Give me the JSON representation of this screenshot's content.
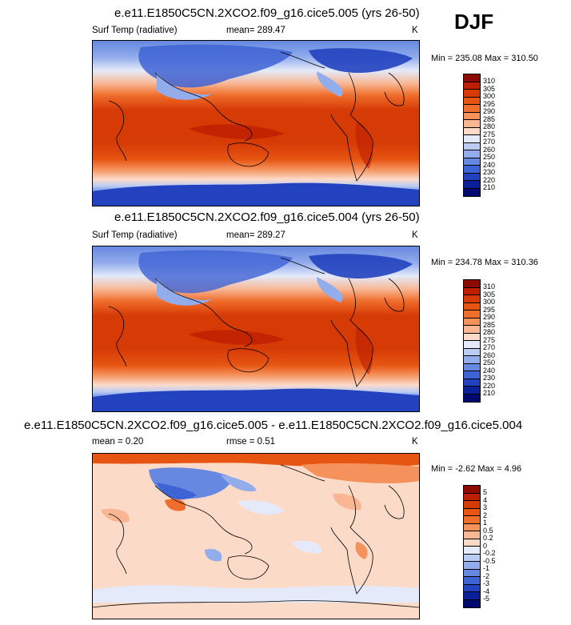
{
  "season": "DJF",
  "panels": [
    {
      "title": "e.e11.E1850C5CN.2XCO2.f09_g16.cice5.005 (yrs 26-50)",
      "variable": "Surf Temp (radiative)",
      "stat": "mean= 289.47",
      "unit": "K",
      "minmax": "Min = 235.08 Max = 310.50",
      "levels": [
        "310",
        "305",
        "300",
        "295",
        "290",
        "285",
        "280",
        "275",
        "270",
        "260",
        "250",
        "240",
        "230",
        "220",
        "210"
      ],
      "colors": [
        "#8c0a00",
        "#bd1f00",
        "#d63a05",
        "#e65512",
        "#f06e2c",
        "#f5925c",
        "#f9b693",
        "#fcdac8",
        "#e4eaf9",
        "#bccdf4",
        "#92acec",
        "#6688e0",
        "#3e63d4",
        "#2242bf",
        "#0a1f99",
        "#02096e"
      ]
    },
    {
      "title": "e.e11.E1850C5CN.2XCO2.f09_g16.cice5.004 (yrs 26-50)",
      "variable": "Surf Temp (radiative)",
      "stat": "mean= 289.27",
      "unit": "K",
      "minmax": "Min = 234.78 Max = 310.36",
      "levels": [
        "310",
        "305",
        "300",
        "295",
        "290",
        "285",
        "280",
        "275",
        "270",
        "260",
        "250",
        "240",
        "230",
        "220",
        "210"
      ],
      "colors": [
        "#8c0a00",
        "#bd1f00",
        "#d63a05",
        "#e65512",
        "#f06e2c",
        "#f5925c",
        "#f9b693",
        "#fcdac8",
        "#e4eaf9",
        "#bccdf4",
        "#92acec",
        "#6688e0",
        "#3e63d4",
        "#2242bf",
        "#0a1f99",
        "#02096e"
      ]
    },
    {
      "title": "e.e11.E1850C5CN.2XCO2.f09_g16.cice5.005 - e.e11.E1850C5CN.2XCO2.f09_g16.cice5.004",
      "variable": "mean =   0.20",
      "stat": "rmse =   0.51",
      "unit": "K",
      "minmax": "Min = -2.62 Max =   4.96",
      "levels": [
        "5",
        "4",
        "3",
        "2",
        "1",
        "0.5",
        "0.2",
        "0",
        "-0.2",
        "-0.5",
        "-1",
        "-2",
        "-3",
        "-4",
        "-5"
      ],
      "colors": [
        "#8c0a00",
        "#bd1f00",
        "#d63a05",
        "#e65512",
        "#f06e2c",
        "#f5925c",
        "#f9b693",
        "#fcdac8",
        "#e4eaf9",
        "#bccdf4",
        "#92acec",
        "#6688e0",
        "#3e63d4",
        "#2242bf",
        "#0a1f99",
        "#02096e"
      ]
    }
  ],
  "chart_data": [
    {
      "type": "heatmap",
      "title": "e.e11.E1850C5CN.2XCO2.f09_g16.cice5.005 (yrs 26-50)",
      "variable": "Surf Temp (radiative)",
      "unit": "K",
      "mean": 289.47,
      "min": 235.08,
      "max": 310.5,
      "contour_levels": [
        210,
        220,
        230,
        240,
        250,
        260,
        270,
        275,
        280,
        285,
        290,
        295,
        300,
        305,
        310
      ]
    },
    {
      "type": "heatmap",
      "title": "e.e11.E1850C5CN.2XCO2.f09_g16.cice5.004 (yrs 26-50)",
      "variable": "Surf Temp (radiative)",
      "unit": "K",
      "mean": 289.27,
      "min": 234.78,
      "max": 310.36,
      "contour_levels": [
        210,
        220,
        230,
        240,
        250,
        260,
        270,
        275,
        280,
        285,
        290,
        295,
        300,
        305,
        310
      ]
    },
    {
      "type": "heatmap",
      "title": "e.e11.E1850C5CN.2XCO2.f09_g16.cice5.005 - e.e11.E1850C5CN.2XCO2.f09_g16.cice5.004",
      "unit": "K",
      "mean": 0.2,
      "rmse": 0.51,
      "min": -2.62,
      "max": 4.96,
      "contour_levels": [
        -5,
        -4,
        -3,
        -2,
        -1,
        -0.5,
        -0.2,
        0,
        0.2,
        0.5,
        1,
        2,
        3,
        4,
        5
      ]
    }
  ]
}
